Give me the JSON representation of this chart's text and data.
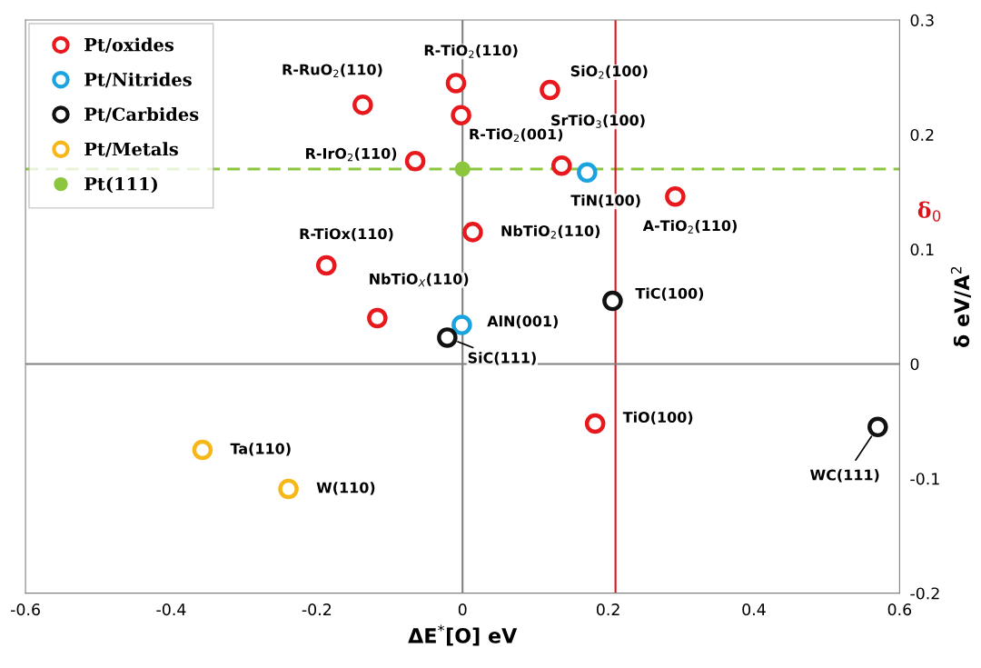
{
  "chart_data": {
    "type": "scatter",
    "xlabel": "ΔE$^{*}$[O] eV",
    "ylabel": "δ eV/A$^{2}$",
    "xlim": [
      -0.6,
      0.6
    ],
    "xticks": [
      -0.6,
      -0.4,
      -0.2,
      0,
      0.2,
      0.4,
      0.6
    ],
    "ylim": [
      -0.2,
      0.3
    ],
    "yticks": [
      -0.2,
      -0.1,
      0,
      0.1,
      0.2,
      0.3
    ],
    "grid": false,
    "legend": "top left",
    "marker": "circle",
    "series": [
      {
        "name": "Pt/oxides",
        "color": "#e8191c",
        "x": [
          -0.137,
          -0.009,
          0.12,
          -0.002,
          -0.065,
          0.136,
          0.292,
          0.014,
          -0.187,
          -0.117,
          0.182
        ],
        "values": [
          0.226,
          0.245,
          0.239,
          0.217,
          0.177,
          0.173,
          0.146,
          0.115,
          0.086,
          0.04,
          -0.052
        ]
      },
      {
        "name": "Pt/Nitrides",
        "color": "#1ba3e0",
        "x": [
          0.171,
          -0.001
        ],
        "values": [
          0.167,
          0.034
        ]
      },
      {
        "name": "Pt/Carbides",
        "color": "#111111",
        "x": [
          0.206,
          -0.021,
          0.57
        ],
        "values": [
          0.055,
          0.023,
          -0.055
        ]
      },
      {
        "name": "Pt/Metals",
        "color": "#f6b818",
        "x": [
          -0.357,
          -0.239
        ],
        "values": [
          -0.075,
          -0.109
        ]
      },
      {
        "name": "Pt(111)",
        "color": "#8cc63f",
        "x": [
          0
        ],
        "values": [
          0.17
        ]
      }
    ],
    "ref_lines": [
      {
        "axis": "y",
        "value": 0.17,
        "label": "δ$_{0}$",
        "color": "#8cc63f",
        "line_style": "dashed"
      },
      {
        "axis": "x",
        "value": 0.21,
        "label": null,
        "color": "#d9141b",
        "line_style": "solid"
      },
      {
        "axis": "x",
        "value": 0,
        "label": null,
        "color": "#808080",
        "line_style": "solid"
      },
      {
        "axis": "y",
        "value": 0,
        "label": null,
        "color": "#808080",
        "line_style": "solid"
      }
    ],
    "annotations": [
      {
        "text": "R-RuO$_{2}$(110)",
        "x": -0.137,
        "y": 0.226
      },
      {
        "text": "R-TiO$_{2}$(110)",
        "x": -0.009,
        "y": 0.245
      },
      {
        "text": "SiO$_{2}$(100)",
        "x": 0.12,
        "y": 0.239
      },
      {
        "text": "R-TiO$_{2}$(001)",
        "x": -0.002,
        "y": 0.217
      },
      {
        "text": "R-IrO$_{2}$(110)",
        "x": -0.065,
        "y": 0.177
      },
      {
        "text": "SrTiO$_{3}$(100)",
        "x": 0.136,
        "y": 0.173
      },
      {
        "text": "TiN(100)",
        "x": 0.171,
        "y": 0.167
      },
      {
        "text": "A-TiO$_{2}$(110)",
        "x": 0.292,
        "y": 0.146
      },
      {
        "text": "NbTiO$_{2}$(110)",
        "x": 0.014,
        "y": 0.115
      },
      {
        "text": "R-TiOx(110)",
        "x": -0.187,
        "y": 0.086
      },
      {
        "text": "NbTiO$_{X}$(110)",
        "x": -0.117,
        "y": 0.04
      },
      {
        "text": "TiC(100)",
        "x": 0.206,
        "y": 0.055
      },
      {
        "text": "AlN(001)",
        "x": -0.001,
        "y": 0.034
      },
      {
        "text": "SiC(111)",
        "x": -0.021,
        "y": 0.023
      },
      {
        "text": "TiO(100)",
        "x": 0.182,
        "y": -0.052
      },
      {
        "text": "WC(111)",
        "x": 0.57,
        "y": -0.055
      },
      {
        "text": "Ta(110)",
        "x": -0.357,
        "y": -0.075
      },
      {
        "text": "W(110)",
        "x": -0.239,
        "y": -0.109
      }
    ]
  }
}
